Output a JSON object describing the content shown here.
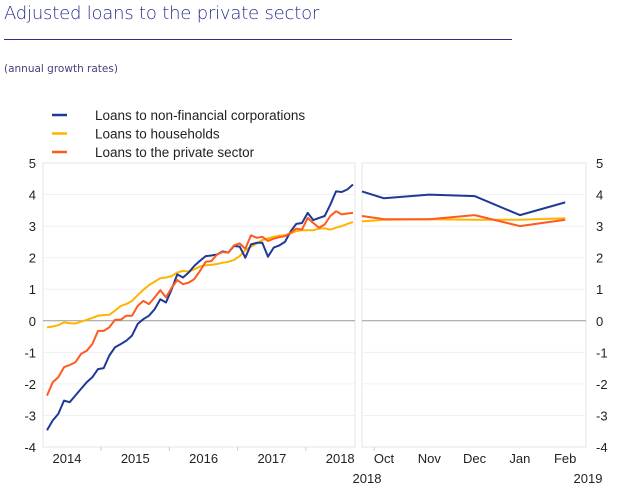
{
  "header": {
    "title": "Adjusted loans to the private sector",
    "subtitle": "(annual growth rates)"
  },
  "chart_data": {
    "type": "line",
    "title": "Adjusted loans to the private sector",
    "subtitle": "(annual growth rates)",
    "ylim": [
      -4,
      5
    ],
    "yticks": [
      "5",
      "4",
      "3",
      "2",
      "1",
      "0",
      "-1",
      "-2",
      "-3",
      "-4"
    ],
    "legend_position": "top-left",
    "grid": true,
    "series_meta": [
      {
        "name": "Loans to non-financial corporations",
        "color": "#1f3a93"
      },
      {
        "name": "Loans to households",
        "color": "#ffb400"
      },
      {
        "name": "Loans to the private sector",
        "color": "#ff5a1f"
      }
    ],
    "left_panel": {
      "x_labels": [
        "2014",
        "2015",
        "2016",
        "2017",
        "2018"
      ],
      "frequency": "monthly",
      "series": [
        {
          "name": "Loans to non-financial corporations",
          "values": [
            -3.47,
            -3.16,
            -2.95,
            -2.53,
            -2.58,
            -2.37,
            -2.16,
            -1.95,
            -1.79,
            -1.53,
            -1.5,
            -1.1,
            -0.84,
            -0.74,
            -0.63,
            -0.47,
            -0.1,
            0.05,
            0.16,
            0.37,
            0.68,
            0.58,
            1.0,
            1.47,
            1.37,
            1.53,
            1.74,
            1.9,
            2.05,
            2.07,
            2.1,
            2.2,
            2.16,
            2.37,
            2.35,
            2.0,
            2.42,
            2.47,
            2.47,
            2.03,
            2.32,
            2.39,
            2.5,
            2.84,
            3.07,
            3.1,
            3.42,
            3.19,
            3.26,
            3.32,
            3.68,
            4.1,
            4.08,
            4.16,
            4.32
          ]
        },
        {
          "name": "Loans to households",
          "values": [
            -0.21,
            -0.18,
            -0.14,
            -0.05,
            -0.08,
            -0.09,
            -0.03,
            0.03,
            0.09,
            0.16,
            0.18,
            0.19,
            0.32,
            0.47,
            0.53,
            0.63,
            0.81,
            0.98,
            1.13,
            1.24,
            1.35,
            1.37,
            1.42,
            1.53,
            1.58,
            1.56,
            1.63,
            1.72,
            1.76,
            1.77,
            1.8,
            1.84,
            1.87,
            1.93,
            2.05,
            2.24,
            2.35,
            2.45,
            2.56,
            2.61,
            2.66,
            2.7,
            2.71,
            2.77,
            2.84,
            2.87,
            2.87,
            2.87,
            2.92,
            2.93,
            2.89,
            2.95,
            3.0,
            3.07,
            3.13
          ]
        },
        {
          "name": "Loans to the private sector",
          "values": [
            -2.37,
            -1.95,
            -1.79,
            -1.47,
            -1.4,
            -1.32,
            -1.05,
            -0.95,
            -0.74,
            -0.32,
            -0.32,
            -0.21,
            0.03,
            0.03,
            0.16,
            0.16,
            0.47,
            0.63,
            0.53,
            0.74,
            0.97,
            0.74,
            1.05,
            1.29,
            1.16,
            1.21,
            1.32,
            1.58,
            1.87,
            1.89,
            2.1,
            2.18,
            2.16,
            2.39,
            2.45,
            2.28,
            2.71,
            2.63,
            2.66,
            2.53,
            2.6,
            2.65,
            2.68,
            2.79,
            2.92,
            2.89,
            3.26,
            3.1,
            2.95,
            3.05,
            3.32,
            3.47,
            3.37,
            3.4,
            3.42
          ]
        }
      ]
    },
    "right_panel": {
      "x_labels": [
        "Oct",
        "Nov",
        "Dec",
        "Jan",
        "Feb"
      ],
      "year_start": "2018",
      "year_end": "2019",
      "series": [
        {
          "name": "Loans to non-financial corporations",
          "values": [
            4.1,
            3.88,
            4.0,
            3.95,
            3.35,
            3.75
          ]
        },
        {
          "name": "Loans to households",
          "values": [
            3.15,
            3.2,
            3.22,
            3.2,
            3.2,
            3.25
          ]
        },
        {
          "name": "Loans to the private sector",
          "values": [
            3.32,
            3.22,
            3.22,
            3.35,
            3.0,
            3.2
          ]
        }
      ]
    }
  }
}
